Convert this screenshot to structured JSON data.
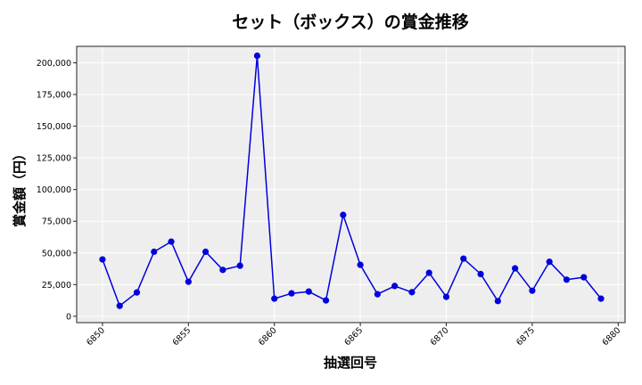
{
  "chart_data": {
    "type": "line",
    "title": "セット（ボックス）の賞金推移",
    "xlabel": "抽選回号",
    "ylabel": "賞金額（円）",
    "x": [
      6850,
      6851,
      6852,
      6853,
      6854,
      6855,
      6856,
      6857,
      6858,
      6859,
      6860,
      6861,
      6862,
      6863,
      6864,
      6865,
      6866,
      6867,
      6868,
      6869,
      6870,
      6871,
      6872,
      6873,
      6874,
      6875,
      6876,
      6877,
      6878,
      6879
    ],
    "series": [
      {
        "name": "セット（ボックス）",
        "color": "#0000dd",
        "marker": "circle",
        "values": [
          44900,
          8200,
          18800,
          50900,
          58900,
          27200,
          50900,
          36600,
          39900,
          205600,
          13900,
          18100,
          19500,
          12500,
          80000,
          40600,
          17400,
          23900,
          19000,
          34300,
          15300,
          45500,
          33300,
          12000,
          37800,
          20200,
          43000,
          28900,
          30800,
          13900
        ]
      }
    ],
    "xlim": [
      6848.5,
      6880.4
    ],
    "ylim": [
      -5000,
      213000
    ],
    "xticks": [
      6850,
      6855,
      6860,
      6865,
      6870,
      6875,
      6880
    ],
    "yticks": [
      0,
      25000,
      50000,
      75000,
      100000,
      125000,
      150000,
      175000,
      200000
    ],
    "ytick_labels": [
      "0",
      "25,000",
      "50,000",
      "75,000",
      "100,000",
      "125,000",
      "150,000",
      "175,000",
      "200,000"
    ],
    "xtick_rotation": 45,
    "grid": true,
    "legend": false,
    "background": "#eeeeee",
    "grid_color": "#ffffff"
  }
}
